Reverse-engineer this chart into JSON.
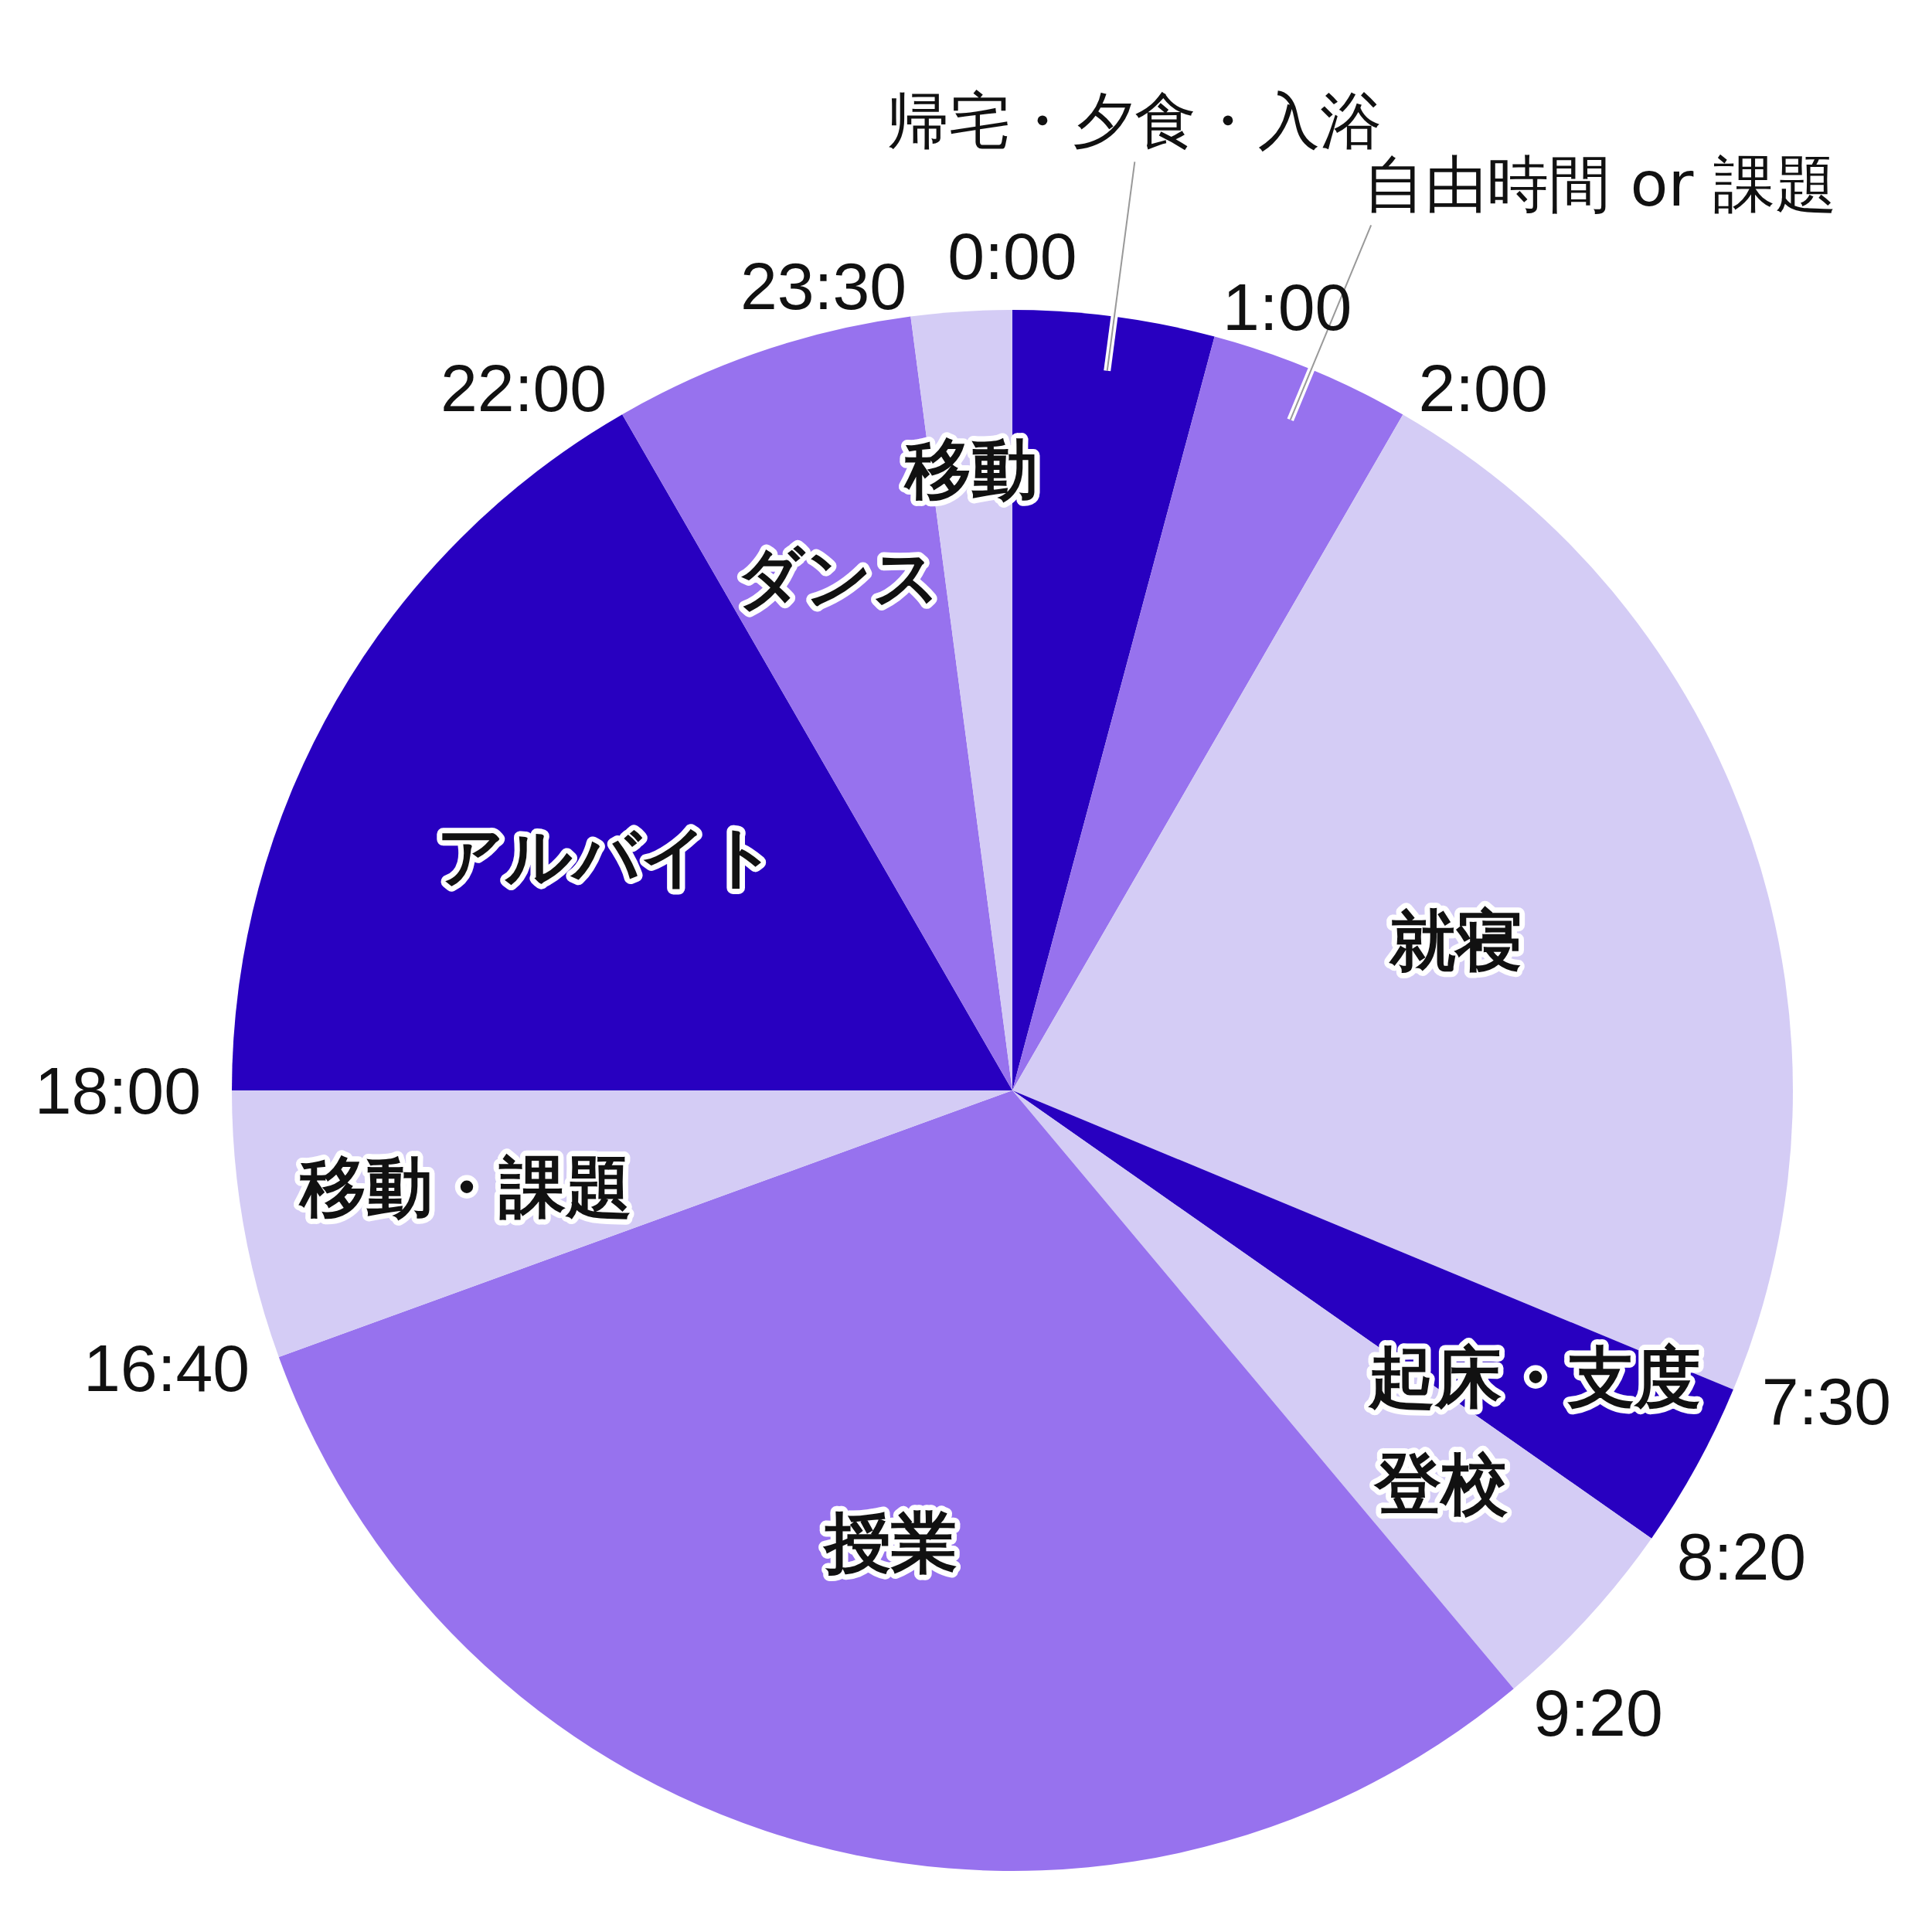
{
  "chart_data": {
    "type": "pie",
    "categories": [
      "帰宅・夕食・入浴",
      "自由時間 or 課題",
      "就寝",
      "起床・支度",
      "登校",
      "授業",
      "移動・課題",
      "アルバイト",
      "ダンス",
      "移動"
    ],
    "values": [
      4.17,
      4.17,
      22.92,
      3.47,
      4.17,
      30.55,
      5.55,
      16.67,
      6.25,
      2.08
    ],
    "colors": [
      "#2800c0",
      "#9772ee",
      "#d4ccf5",
      "#2800c0",
      "#d4ccf5",
      "#9772ee",
      "#d4ccf5",
      "#2800c0",
      "#9772ee",
      "#d4ccf5"
    ],
    "annotations": [
      "0:00",
      "1:00",
      "2:00",
      "7:30",
      "8:20",
      "9:20",
      "16:40",
      "18:00",
      "22:00",
      "23:30"
    ]
  }
}
